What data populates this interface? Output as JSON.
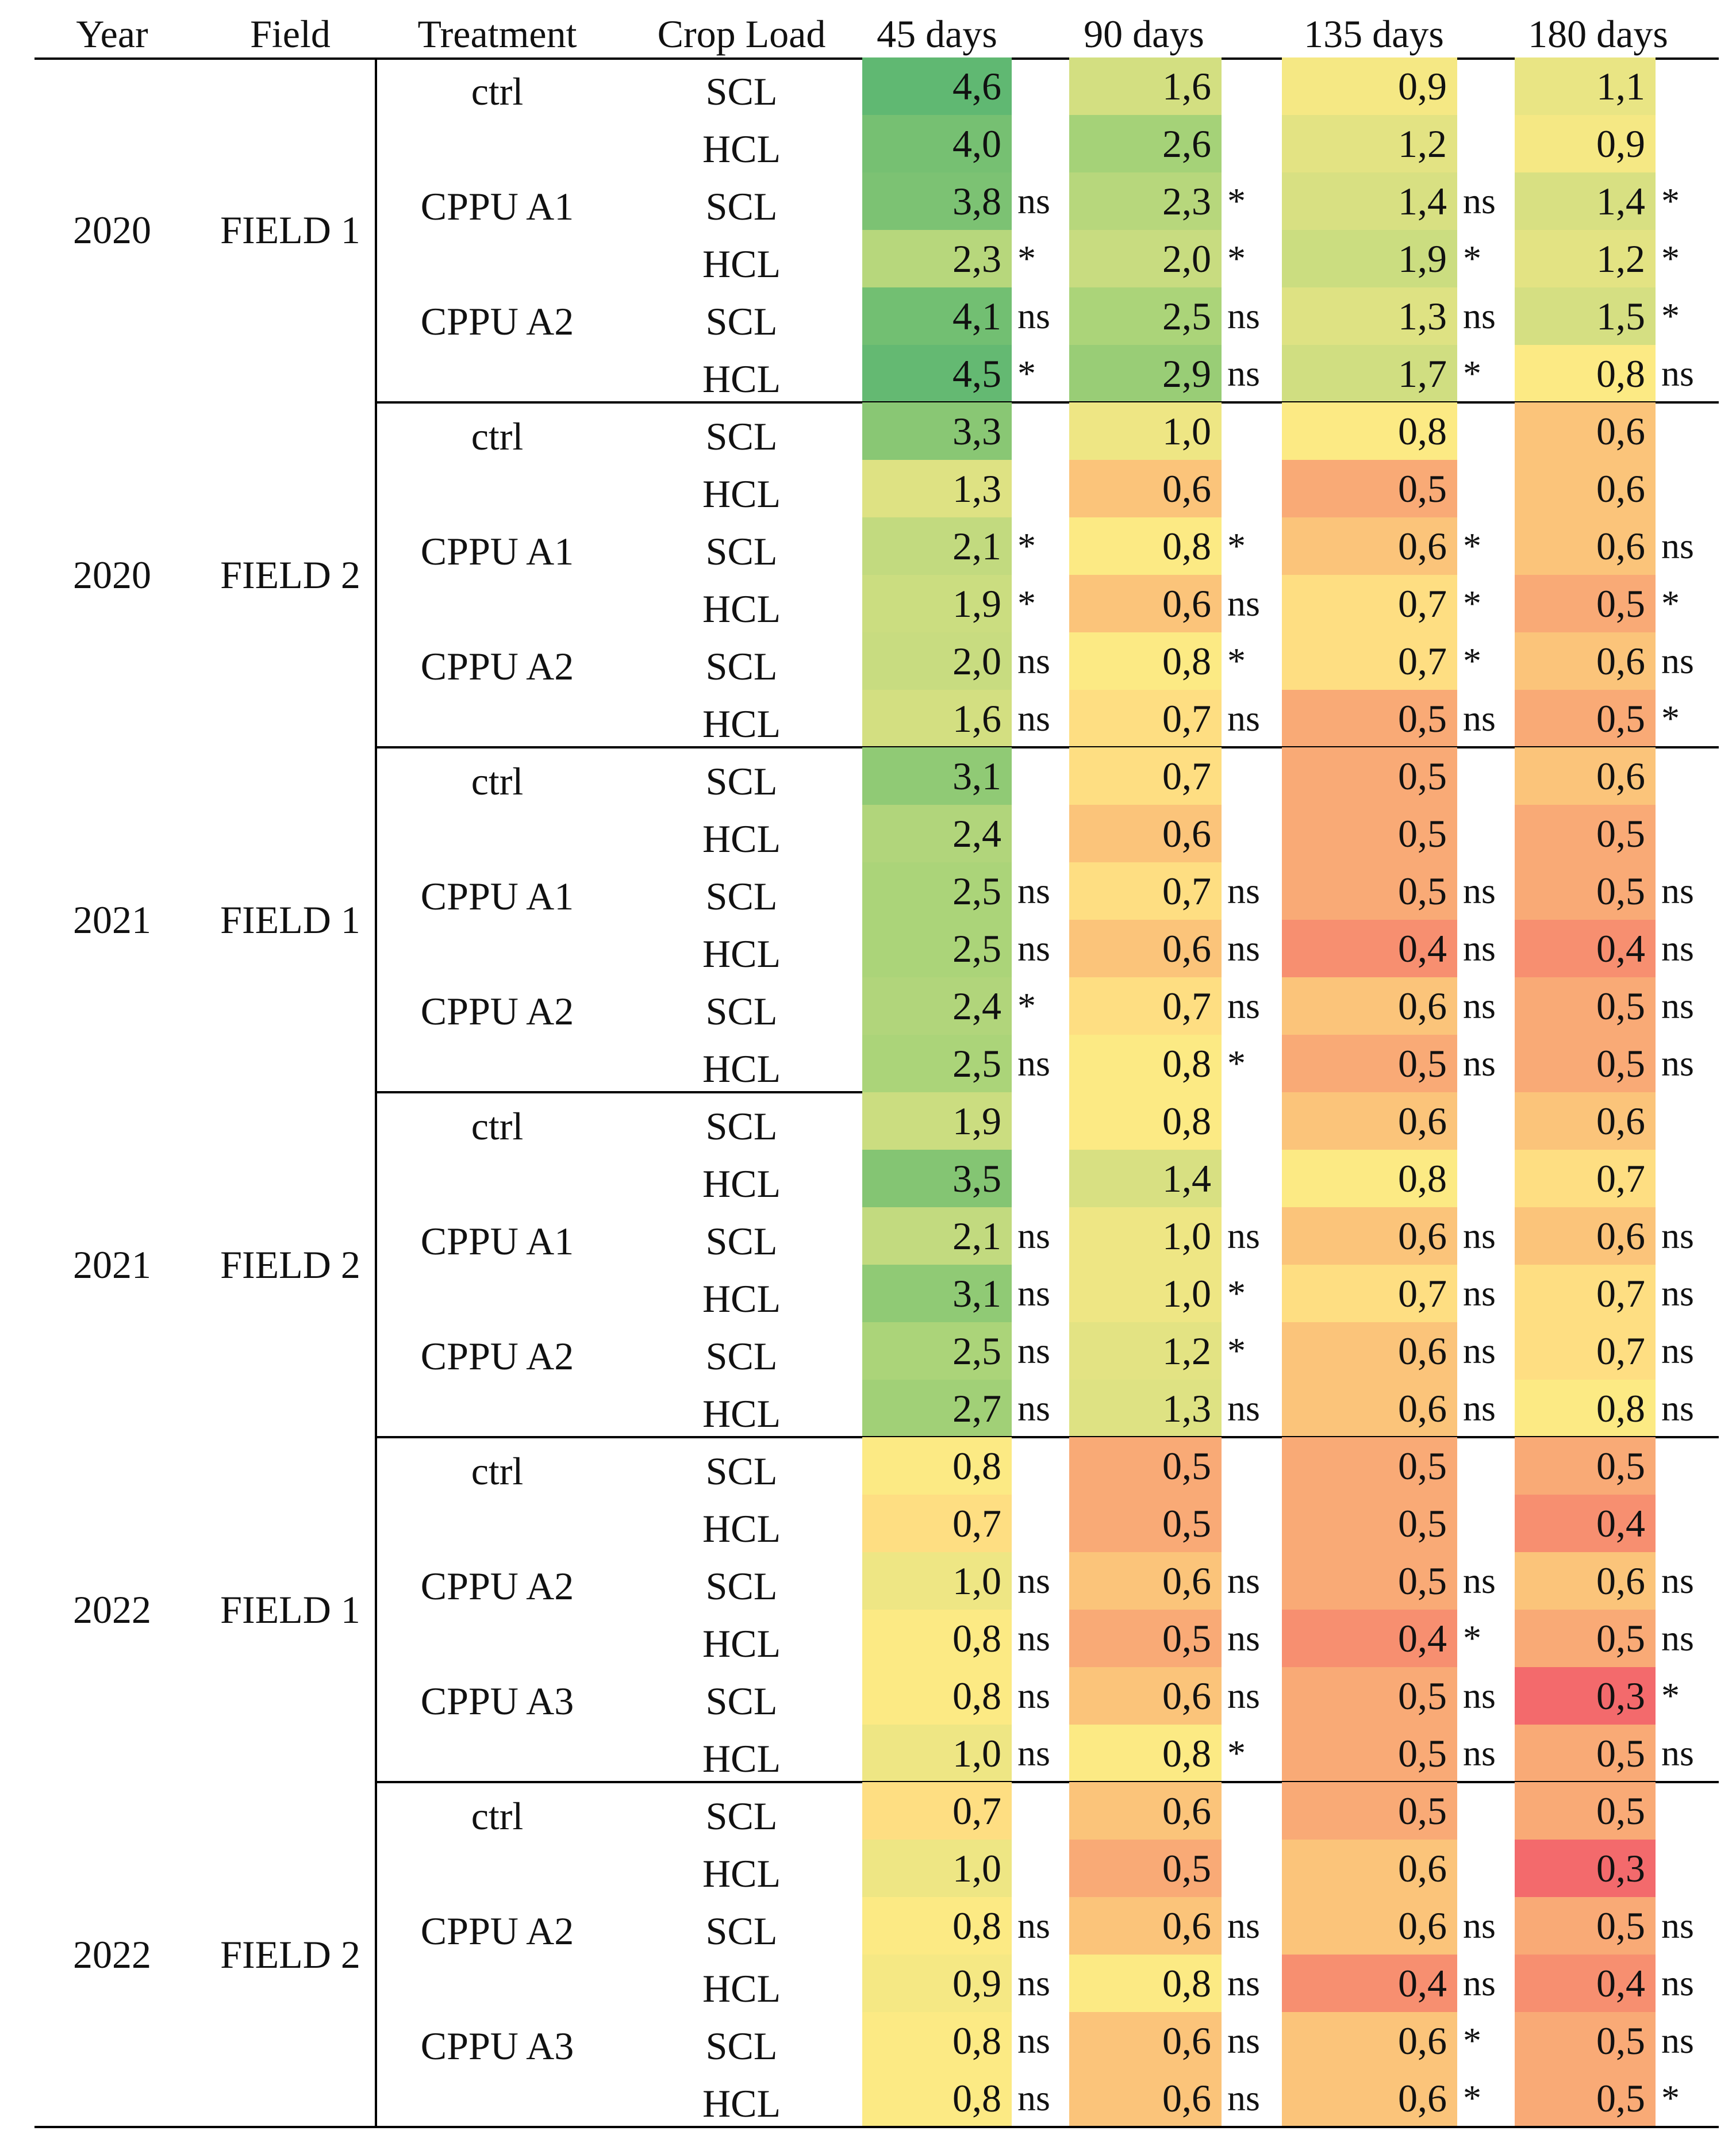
{
  "table": {
    "headers": {
      "year": "Year",
      "field": "Field",
      "treatment": "Treatment",
      "crop_load": "Crop Load",
      "d45": "45 days",
      "d90": "90 days",
      "d135": "135 days",
      "d180": "180 days"
    },
    "groups": [
      {
        "year": "2020",
        "field": "FIELD 1",
        "rows": [
          {
            "treatment": "ctrl",
            "load": "SCL",
            "v45": "4,6",
            "s45": "",
            "v90": "1,6",
            "s90": "",
            "v135": "0,9",
            "s135": "",
            "v180": "1,1",
            "s180": ""
          },
          {
            "treatment": "",
            "load": "HCL",
            "v45": "4,0",
            "s45": "",
            "v90": "2,6",
            "s90": "",
            "v135": "1,2",
            "s135": "",
            "v180": "0,9",
            "s180": ""
          },
          {
            "treatment": "CPPU A1",
            "load": "SCL",
            "v45": "3,8",
            "s45": "ns",
            "v90": "2,3",
            "s90": "*",
            "v135": "1,4",
            "s135": "ns",
            "v180": "1,4",
            "s180": "*"
          },
          {
            "treatment": "",
            "load": "HCL",
            "v45": "2,3",
            "s45": "*",
            "v90": "2,0",
            "s90": "*",
            "v135": "1,9",
            "s135": "*",
            "v180": "1,2",
            "s180": "*"
          },
          {
            "treatment": "CPPU A2",
            "load": "SCL",
            "v45": "4,1",
            "s45": "ns",
            "v90": "2,5",
            "s90": "ns",
            "v135": "1,3",
            "s135": "ns",
            "v180": "1,5",
            "s180": "*"
          },
          {
            "treatment": "",
            "load": "HCL",
            "v45": "4,5",
            "s45": "*",
            "v90": "2,9",
            "s90": "ns",
            "v135": "1,7",
            "s135": "*",
            "v180": "0,8",
            "s180": "ns"
          }
        ]
      },
      {
        "year": "2020",
        "field": "FIELD 2",
        "rows": [
          {
            "treatment": "ctrl",
            "load": "SCL",
            "v45": "3,3",
            "s45": "",
            "v90": "1,0",
            "s90": "",
            "v135": "0,8",
            "s135": "",
            "v180": "0,6",
            "s180": ""
          },
          {
            "treatment": "",
            "load": "HCL",
            "v45": "1,3",
            "s45": "",
            "v90": "0,6",
            "s90": "",
            "v135": "0,5",
            "s135": "",
            "v180": "0,6",
            "s180": ""
          },
          {
            "treatment": "CPPU A1",
            "load": "SCL",
            "v45": "2,1",
            "s45": "*",
            "v90": "0,8",
            "s90": "*",
            "v135": "0,6",
            "s135": "*",
            "v180": "0,6",
            "s180": "ns"
          },
          {
            "treatment": "",
            "load": "HCL",
            "v45": "1,9",
            "s45": "*",
            "v90": "0,6",
            "s90": "ns",
            "v135": "0,7",
            "s135": "*",
            "v180": "0,5",
            "s180": "*"
          },
          {
            "treatment": "CPPU A2",
            "load": "SCL",
            "v45": "2,0",
            "s45": "ns",
            "v90": "0,8",
            "s90": "*",
            "v135": "0,7",
            "s135": "*",
            "v180": "0,6",
            "s180": "ns"
          },
          {
            "treatment": "",
            "load": "HCL",
            "v45": "1,6",
            "s45": "ns",
            "v90": "0,7",
            "s90": "ns",
            "v135": "0,5",
            "s135": "ns",
            "v180": "0,5",
            "s180": "*"
          }
        ]
      },
      {
        "year": "2021",
        "field": "FIELD 1",
        "rows": [
          {
            "treatment": "ctrl",
            "load": "SCL",
            "v45": "3,1",
            "s45": "",
            "v90": "0,7",
            "s90": "",
            "v135": "0,5",
            "s135": "",
            "v180": "0,6",
            "s180": ""
          },
          {
            "treatment": "",
            "load": "HCL",
            "v45": "2,4",
            "s45": "",
            "v90": "0,6",
            "s90": "",
            "v135": "0,5",
            "s135": "",
            "v180": "0,5",
            "s180": ""
          },
          {
            "treatment": "CPPU A1",
            "load": "SCL",
            "v45": "2,5",
            "s45": "ns",
            "v90": "0,7",
            "s90": "ns",
            "v135": "0,5",
            "s135": "ns",
            "v180": "0,5",
            "s180": "ns"
          },
          {
            "treatment": "",
            "load": "HCL",
            "v45": "2,5",
            "s45": "ns",
            "v90": "0,6",
            "s90": "ns",
            "v135": "0,4",
            "s135": "ns",
            "v180": "0,4",
            "s180": "ns"
          },
          {
            "treatment": "CPPU A2",
            "load": "SCL",
            "v45": "2,4",
            "s45": "*",
            "v90": "0,7",
            "s90": "ns",
            "v135": "0,6",
            "s135": "ns",
            "v180": "0,5",
            "s180": "ns"
          },
          {
            "treatment": "",
            "load": "HCL",
            "v45": "2,5",
            "s45": "ns",
            "v90": "0,8",
            "s90": "*",
            "v135": "0,5",
            "s135": "ns",
            "v180": "0,5",
            "s180": "ns"
          }
        ]
      },
      {
        "year": "2021",
        "field": "FIELD 2",
        "rows": [
          {
            "treatment": "ctrl",
            "load": "SCL",
            "v45": "1,9",
            "s45": "",
            "v90": "0,8",
            "s90": "",
            "v135": "0,6",
            "s135": "",
            "v180": "0,6",
            "s180": ""
          },
          {
            "treatment": "",
            "load": "HCL",
            "v45": "3,5",
            "s45": "",
            "v90": "1,4",
            "s90": "",
            "v135": "0,8",
            "s135": "",
            "v180": "0,7",
            "s180": ""
          },
          {
            "treatment": "CPPU A1",
            "load": "SCL",
            "v45": "2,1",
            "s45": "ns",
            "v90": "1,0",
            "s90": "ns",
            "v135": "0,6",
            "s135": "ns",
            "v180": "0,6",
            "s180": "ns"
          },
          {
            "treatment": "",
            "load": "HCL",
            "v45": "3,1",
            "s45": "ns",
            "v90": "1,0",
            "s90": "*",
            "v135": "0,7",
            "s135": "ns",
            "v180": "0,7",
            "s180": "ns"
          },
          {
            "treatment": "CPPU A2",
            "load": "SCL",
            "v45": "2,5",
            "s45": "ns",
            "v90": "1,2",
            "s90": "*",
            "v135": "0,6",
            "s135": "ns",
            "v180": "0,7",
            "s180": "ns"
          },
          {
            "treatment": "",
            "load": "HCL",
            "v45": "2,7",
            "s45": "ns",
            "v90": "1,3",
            "s90": "ns",
            "v135": "0,6",
            "s135": "ns",
            "v180": "0,8",
            "s180": "ns"
          }
        ]
      },
      {
        "year": "2022",
        "field": "FIELD 1",
        "rows": [
          {
            "treatment": "ctrl",
            "load": "SCL",
            "v45": "0,8",
            "s45": "",
            "v90": "0,5",
            "s90": "",
            "v135": "0,5",
            "s135": "",
            "v180": "0,5",
            "s180": ""
          },
          {
            "treatment": "",
            "load": "HCL",
            "v45": "0,7",
            "s45": "",
            "v90": "0,5",
            "s90": "",
            "v135": "0,5",
            "s135": "",
            "v180": "0,4",
            "s180": ""
          },
          {
            "treatment": "CPPU A2",
            "load": "SCL",
            "v45": "1,0",
            "s45": "ns",
            "v90": "0,6",
            "s90": "ns",
            "v135": "0,5",
            "s135": "ns",
            "v180": "0,6",
            "s180": "ns"
          },
          {
            "treatment": "",
            "load": "HCL",
            "v45": "0,8",
            "s45": "ns",
            "v90": "0,5",
            "s90": "ns",
            "v135": "0,4",
            "s135": "*",
            "v180": "0,5",
            "s180": "ns"
          },
          {
            "treatment": "CPPU A3",
            "load": "SCL",
            "v45": "0,8",
            "s45": "ns",
            "v90": "0,6",
            "s90": "ns",
            "v135": "0,5",
            "s135": "ns",
            "v180": "0,3",
            "s180": "*"
          },
          {
            "treatment": "",
            "load": "HCL",
            "v45": "1,0",
            "s45": "ns",
            "v90": "0,8",
            "s90": "*",
            "v135": "0,5",
            "s135": "ns",
            "v180": "0,5",
            "s180": "ns"
          }
        ]
      },
      {
        "year": "2022",
        "field": "FIELD 2",
        "rows": [
          {
            "treatment": "ctrl",
            "load": "SCL",
            "v45": "0,7",
            "s45": "",
            "v90": "0,6",
            "s90": "",
            "v135": "0,5",
            "s135": "",
            "v180": "0,5",
            "s180": ""
          },
          {
            "treatment": "",
            "load": "HCL",
            "v45": "1,0",
            "s45": "",
            "v90": "0,5",
            "s90": "",
            "v135": "0,6",
            "s135": "",
            "v180": "0,3",
            "s180": ""
          },
          {
            "treatment": "CPPU A2",
            "load": "SCL",
            "v45": "0,8",
            "s45": "ns",
            "v90": "0,6",
            "s90": "ns",
            "v135": "0,6",
            "s135": "ns",
            "v180": "0,5",
            "s180": "ns"
          },
          {
            "treatment": "",
            "load": "HCL",
            "v45": "0,9",
            "s45": "ns",
            "v90": "0,8",
            "s90": "ns",
            "v135": "0,4",
            "s135": "ns",
            "v180": "0,4",
            "s180": "ns"
          },
          {
            "treatment": "CPPU A3",
            "load": "SCL",
            "v45": "0,8",
            "s45": "ns",
            "v90": "0,6",
            "s90": "ns",
            "v135": "0,6",
            "s135": "*",
            "v180": "0,5",
            "s180": "ns"
          },
          {
            "treatment": "",
            "load": "HCL",
            "v45": "0,8",
            "s45": "ns",
            "v90": "0,6",
            "s90": "ns",
            "v135": "0,6",
            "s135": "*",
            "v180": "0,5",
            "s180": "*"
          }
        ]
      }
    ]
  }
}
